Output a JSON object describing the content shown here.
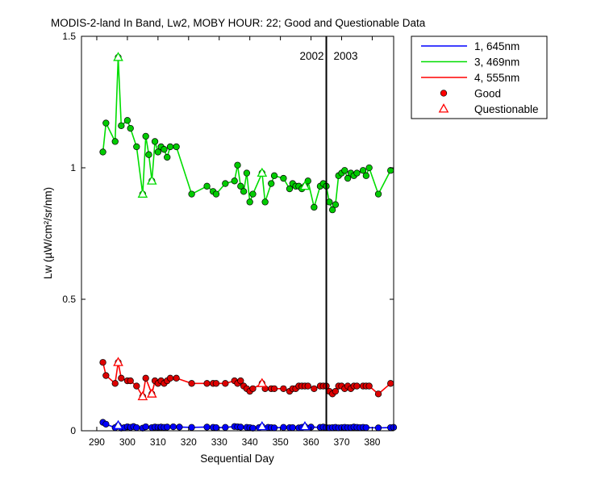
{
  "chart_data": {
    "type": "line",
    "title": "MODIS-2-land In Band,  Lw2, MOBY HOUR: 22;  Good and Questionable Data",
    "xlabel": "Sequential Day",
    "ylabel": "Lw (µW/cm²/sr/nm)",
    "xlim": [
      285,
      387
    ],
    "ylim": [
      0,
      1.5
    ],
    "xticks": [
      290,
      300,
      310,
      320,
      330,
      340,
      350,
      360,
      370,
      380
    ],
    "yticks": [
      0,
      0.5,
      1,
      1.5
    ],
    "ytick_labels": [
      "0",
      "0.5",
      "1",
      "1.5"
    ],
    "grid": false,
    "legend_position": "outside-top-right",
    "annotations": {
      "year_divider_x": 365,
      "left_year": "2002",
      "right_year": "2003"
    },
    "legend": [
      {
        "label": "1, 645nm",
        "kind": "line",
        "color": "#0000ff"
      },
      {
        "label": "3, 469nm",
        "kind": "line",
        "color": "#00dd00"
      },
      {
        "label": "4, 555nm",
        "kind": "line",
        "color": "#ff0000"
      },
      {
        "label": "Good",
        "kind": "circle",
        "color": "#ff0000"
      },
      {
        "label": "Questionable",
        "kind": "triangle",
        "color": "#ff0000"
      }
    ],
    "series": [
      {
        "name": "1, 645nm",
        "color": "#0000ff",
        "marker_fill": "#0000ff",
        "x": [
          292,
          293,
          296,
          297,
          298,
          299,
          300,
          301,
          302,
          303,
          305,
          306,
          308,
          309,
          310,
          311,
          312,
          313,
          315,
          317,
          321,
          326,
          328,
          329,
          332,
          335,
          336,
          337,
          339,
          340,
          341,
          343,
          344,
          346,
          347,
          348,
          351,
          353,
          354,
          356,
          357,
          358,
          360,
          363,
          364,
          365,
          366,
          367,
          368,
          369,
          370,
          371,
          372,
          373,
          374,
          375,
          376,
          377,
          378,
          382,
          386,
          387
        ],
        "y": [
          0.032,
          0.025,
          0.012,
          0.02,
          0.01,
          0.012,
          0.015,
          0.013,
          0.016,
          0.012,
          0.01,
          0.015,
          0.012,
          0.014,
          0.013,
          0.014,
          0.013,
          0.014,
          0.015,
          0.014,
          0.013,
          0.014,
          0.013,
          0.012,
          0.013,
          0.016,
          0.015,
          0.014,
          0.013,
          0.012,
          0.01,
          0.012,
          0.016,
          0.013,
          0.012,
          0.011,
          0.013,
          0.012,
          0.012,
          0.011,
          0.013,
          0.016,
          0.014,
          0.013,
          0.014,
          0.012,
          0.011,
          0.012,
          0.013,
          0.011,
          0.012,
          0.013,
          0.012,
          0.012,
          0.014,
          0.013,
          0.012,
          0.013,
          0.012,
          0.011,
          0.012,
          0.013
        ],
        "questionable_x": [
          297,
          344,
          358
        ],
        "questionable_y": [
          0.02,
          0.016,
          0.016
        ]
      },
      {
        "name": "3, 469nm",
        "color": "#00dd00",
        "marker_fill": "#00cc00",
        "x": [
          292,
          293,
          296,
          297,
          298,
          300,
          301,
          303,
          305,
          306,
          307,
          308,
          309,
          310,
          311,
          312,
          313,
          314,
          316,
          321,
          326,
          328,
          329,
          332,
          335,
          336,
          337,
          338,
          339,
          340,
          341,
          344,
          345,
          347,
          348,
          351,
          353,
          354,
          355,
          356,
          357,
          358,
          359,
          361,
          363,
          364,
          365,
          366,
          367,
          368,
          369,
          370,
          371,
          372,
          373,
          374,
          375,
          377,
          378,
          379,
          382,
          386
        ],
        "y": [
          1.06,
          1.17,
          1.1,
          1.42,
          1.16,
          1.18,
          1.15,
          1.08,
          0.9,
          1.12,
          1.05,
          0.95,
          1.1,
          1.06,
          1.08,
          1.07,
          1.04,
          1.08,
          1.08,
          0.9,
          0.93,
          0.91,
          0.9,
          0.94,
          0.95,
          1.01,
          0.93,
          0.91,
          0.98,
          0.87,
          0.9,
          0.98,
          0.87,
          0.94,
          0.97,
          0.96,
          0.92,
          0.94,
          0.93,
          0.93,
          0.92,
          0.93,
          0.95,
          0.85,
          0.93,
          0.94,
          0.93,
          0.87,
          0.84,
          0.86,
          0.97,
          0.98,
          0.99,
          0.96,
          0.98,
          0.97,
          0.98,
          0.99,
          0.97,
          1.0,
          0.9,
          0.99
        ],
        "questionable_x": [
          297,
          305,
          308,
          344,
          358
        ],
        "questionable_y": [
          1.42,
          0.9,
          0.95,
          0.98,
          0.93
        ]
      },
      {
        "name": "4, 555nm",
        "color": "#ff0000",
        "marker_fill": "#dd0000",
        "x": [
          292,
          293,
          296,
          297,
          298,
          300,
          301,
          303,
          305,
          306,
          308,
          309,
          310,
          311,
          312,
          313,
          314,
          316,
          321,
          326,
          328,
          329,
          332,
          335,
          336,
          337,
          338,
          339,
          340,
          341,
          344,
          345,
          347,
          348,
          351,
          353,
          354,
          355,
          356,
          357,
          358,
          359,
          361,
          363,
          364,
          365,
          366,
          367,
          368,
          369,
          370,
          371,
          372,
          373,
          374,
          375,
          377,
          378,
          379,
          382,
          386
        ],
        "y": [
          0.26,
          0.21,
          0.18,
          0.26,
          0.2,
          0.19,
          0.19,
          0.17,
          0.13,
          0.2,
          0.14,
          0.19,
          0.18,
          0.19,
          0.18,
          0.19,
          0.2,
          0.2,
          0.18,
          0.18,
          0.18,
          0.18,
          0.18,
          0.19,
          0.18,
          0.19,
          0.17,
          0.16,
          0.15,
          0.16,
          0.18,
          0.16,
          0.16,
          0.16,
          0.16,
          0.15,
          0.16,
          0.16,
          0.17,
          0.17,
          0.17,
          0.17,
          0.16,
          0.17,
          0.17,
          0.17,
          0.15,
          0.14,
          0.15,
          0.17,
          0.17,
          0.16,
          0.17,
          0.16,
          0.17,
          0.17,
          0.17,
          0.17,
          0.17,
          0.14,
          0.18
        ],
        "questionable_x": [
          297,
          305,
          308,
          344
        ],
        "questionable_y": [
          0.26,
          0.13,
          0.14,
          0.18
        ]
      }
    ]
  }
}
